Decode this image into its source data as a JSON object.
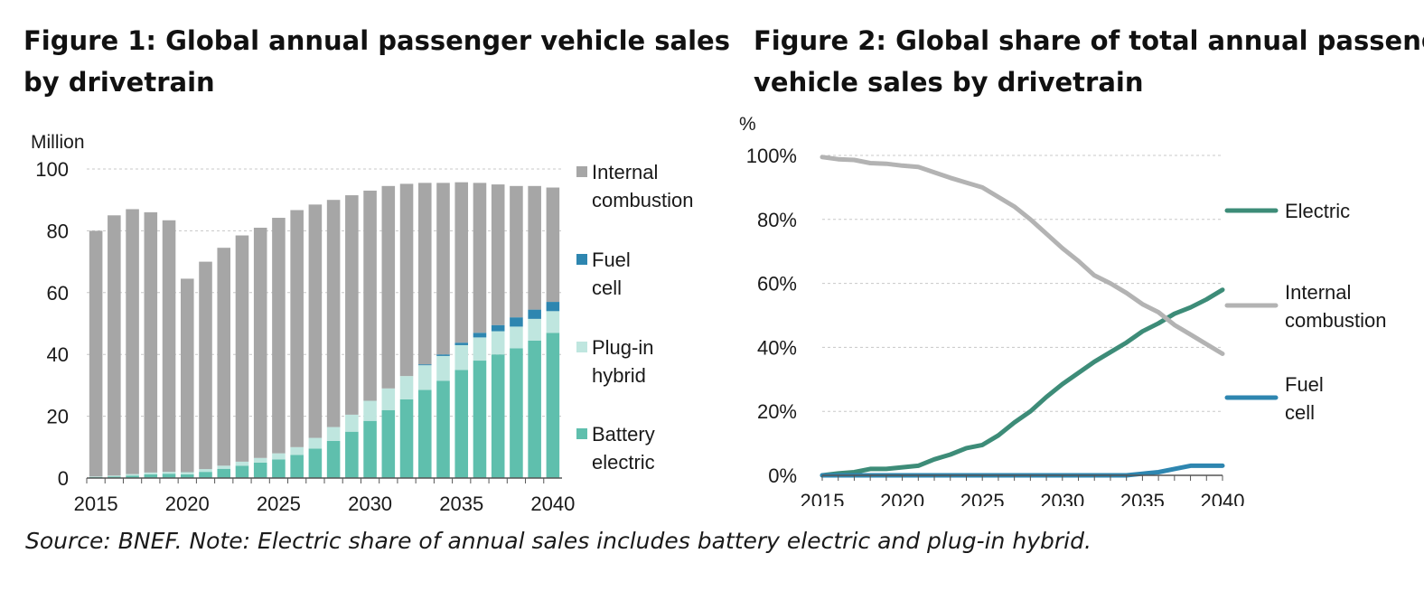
{
  "figures": [
    {
      "title_line1": "Figure 1: Global annual passenger vehicle sales",
      "title_line2": "by drivetrain"
    },
    {
      "title_line1": "Figure 2: Global share of total annual passenger",
      "title_line2": "vehicle sales by drivetrain"
    }
  ],
  "source_note": "Source: BNEF. Note: Electric share of annual sales includes battery electric and plug-in hybrid.",
  "chart_data": [
    {
      "type": "bar",
      "stacked": true,
      "ylabel": "Million",
      "ylim": [
        0,
        100
      ],
      "yticks": [
        0,
        20,
        40,
        60,
        80,
        100
      ],
      "xticks": [
        "2015",
        "2020",
        "2025",
        "2030",
        "2035",
        "2040"
      ],
      "grid": "horizontal dashed",
      "legend_position": "right",
      "categories": [
        "2015",
        "2016",
        "2017",
        "2018",
        "2019",
        "2020",
        "2021",
        "2022",
        "2023",
        "2024",
        "2025",
        "2026",
        "2027",
        "2028",
        "2029",
        "2030",
        "2031",
        "2032",
        "2033",
        "2034",
        "2035",
        "2036",
        "2037",
        "2038",
        "2039",
        "2040"
      ],
      "series": [
        {
          "name": "Battery electric",
          "color": "#5fbfad",
          "values": [
            0.3,
            0.5,
            0.8,
            1.2,
            1.4,
            1.2,
            2.0,
            3.0,
            4.0,
            5.0,
            6.0,
            7.5,
            9.5,
            12.0,
            15.0,
            18.5,
            22.0,
            25.5,
            28.5,
            31.5,
            35.0,
            38.0,
            40.0,
            42.0,
            44.5,
            47.0
          ]
        },
        {
          "name": "Plug-in hybrid",
          "color": "#bfe6df",
          "values": [
            0.2,
            0.3,
            0.5,
            0.6,
            0.6,
            0.7,
            0.9,
            1.0,
            1.3,
            1.5,
            2.0,
            2.5,
            3.5,
            4.5,
            5.5,
            6.5,
            7.0,
            7.5,
            8.0,
            8.0,
            8.0,
            7.5,
            7.5,
            7.0,
            7.0,
            7.0
          ]
        },
        {
          "name": "Fuel cell",
          "color": "#2e86b0",
          "values": [
            0,
            0,
            0,
            0,
            0,
            0,
            0,
            0,
            0,
            0,
            0,
            0,
            0,
            0,
            0,
            0,
            0,
            0,
            0.3,
            0.5,
            0.8,
            1.5,
            2.0,
            3.0,
            3.0,
            3.0
          ]
        },
        {
          "name": "Internal combustion",
          "color": "#a6a6a6",
          "values": [
            79.5,
            84.2,
            85.7,
            84.2,
            81.4,
            62.6,
            67.1,
            70.5,
            73.2,
            74.5,
            76.2,
            76.7,
            75.5,
            73.5,
            71.0,
            68.0,
            65.5,
            62.2,
            58.7,
            55.5,
            51.9,
            48.5,
            45.5,
            42.5,
            40.0,
            37.0
          ]
        }
      ]
    },
    {
      "type": "line",
      "ylabel": "%",
      "ylim": [
        0,
        100
      ],
      "yticks": [
        0,
        20,
        40,
        60,
        80,
        100
      ],
      "ytick_labels": [
        "0%",
        "20%",
        "40%",
        "60%",
        "80%",
        "100%"
      ],
      "xticks": [
        "2015",
        "2020",
        "2025",
        "2030",
        "2035",
        "2040"
      ],
      "grid": "horizontal dashed",
      "legend_position": "right",
      "x": [
        2015,
        2016,
        2017,
        2018,
        2019,
        2020,
        2021,
        2022,
        2023,
        2024,
        2025,
        2026,
        2027,
        2028,
        2029,
        2030,
        2031,
        2032,
        2033,
        2034,
        2035,
        2036,
        2037,
        2038,
        2039,
        2040
      ],
      "series": [
        {
          "name": "Electric",
          "color": "#3d8c78",
          "values": [
            0,
            0.6,
            1,
            2,
            2,
            2.5,
            3,
            5,
            6.5,
            8.5,
            9.5,
            12.5,
            16.5,
            20,
            24.5,
            28.5,
            32,
            35.5,
            38.5,
            41.5,
            45,
            47.5,
            50.5,
            52.5,
            55,
            58
          ]
        },
        {
          "name": "Internal combustion",
          "color": "#b3b3b3",
          "values": [
            99.5,
            98.8,
            98.6,
            97.6,
            97.4,
            96.8,
            96.4,
            94.7,
            93,
            91.5,
            90,
            87,
            84,
            80,
            75.5,
            71,
            67,
            62.5,
            60,
            57,
            53.5,
            51,
            47,
            44,
            41,
            38
          ]
        },
        {
          "name": "Fuel cell",
          "color": "#2e86b0",
          "values": [
            0,
            0,
            0,
            0,
            0,
            0,
            0,
            0,
            0,
            0,
            0,
            0,
            0,
            0,
            0,
            0,
            0,
            0,
            0,
            0,
            0.5,
            1,
            2,
            3,
            3,
            3
          ]
        }
      ],
      "legend": [
        {
          "label": "Electric",
          "series": 0
        },
        {
          "label": "Internal combustion",
          "series": 1
        },
        {
          "label": "Fuel cell",
          "series": 2
        }
      ]
    }
  ]
}
